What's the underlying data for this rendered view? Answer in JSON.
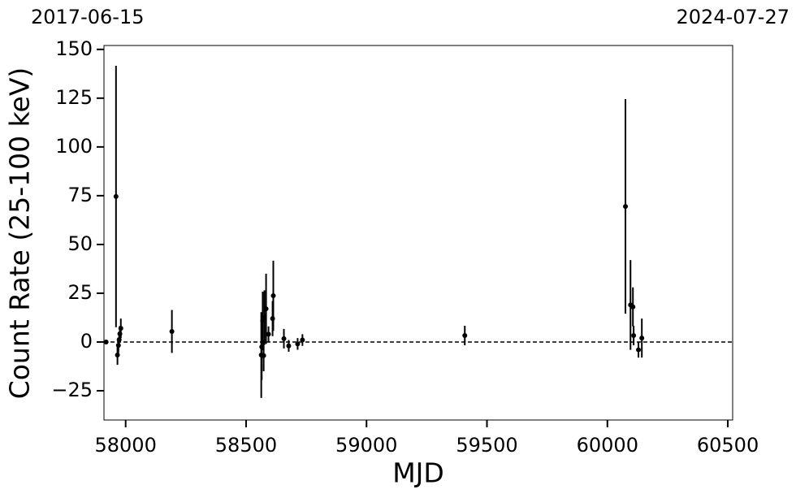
{
  "chart_data": {
    "type": "errorbar",
    "xlabel": "MJD",
    "ylabel": "Count Rate (25-100 keV)",
    "annotations": [
      "2017-06-15",
      "2024-07-27"
    ],
    "xlim": [
      57910,
      60520
    ],
    "ylim": [
      -40,
      152
    ],
    "xticks": [
      58000,
      58500,
      59000,
      59500,
      60000,
      60500
    ],
    "yticks": [
      {
        "value": -25,
        "label": "−25"
      },
      0,
      25,
      50,
      75,
      100,
      125,
      150
    ],
    "reference_line": 0,
    "color": "#000000",
    "series": [
      {
        "color": "#000000",
        "x": [
          57919,
          57960,
          57966,
          57970,
          57973,
          57976,
          57980,
          58192,
          58563,
          58565,
          58569,
          58573,
          58576,
          58583,
          58593,
          58610,
          58613,
          58657,
          58677,
          58714,
          58734,
          59408,
          60075,
          60096,
          60106,
          60109,
          60129,
          60143
        ],
        "values": [
          0,
          74.6,
          -6.7,
          -1.7,
          1.2,
          4.2,
          7,
          5.4,
          -6.7,
          -2.5,
          10.8,
          -7,
          12.5,
          17,
          4,
          12,
          23.7,
          1.7,
          -2,
          -1,
          1,
          3.3,
          69.5,
          19,
          18,
          3.3,
          -4,
          2
        ],
        "errors": [
          0.5,
          67,
          5,
          4,
          4,
          4,
          5,
          11,
          22,
          17,
          15,
          8,
          14,
          18,
          4,
          9,
          18,
          5,
          3,
          3,
          3,
          5,
          55,
          23,
          10,
          5,
          4,
          10
        ]
      }
    ]
  }
}
